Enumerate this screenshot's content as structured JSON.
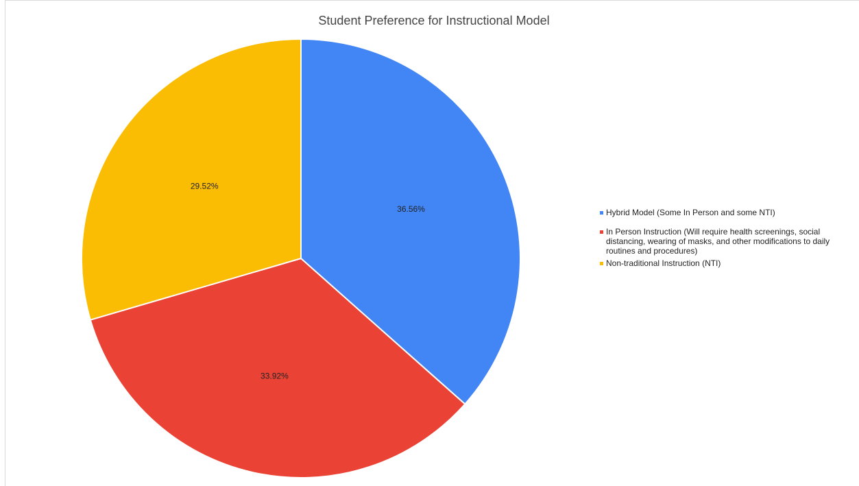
{
  "chart_data": {
    "type": "pie",
    "title": "Student Preference for Instructional Model",
    "legend_position": "right",
    "slices": [
      {
        "label": "Hybrid Model (Some In Person and some NTI)",
        "value": 36.56,
        "display": "36.56%",
        "color": "#4285F4"
      },
      {
        "label": "In Person Instruction (Will require health screenings, social distancing, wearing of masks, and other modifications to daily routines and procedures)",
        "value": 33.92,
        "display": "33.92%",
        "color": "#EA4335"
      },
      {
        "label": "Non-traditional Instruction (NTI)",
        "value": 29.52,
        "display": "29.52%",
        "color": "#FBBC04"
      }
    ]
  }
}
